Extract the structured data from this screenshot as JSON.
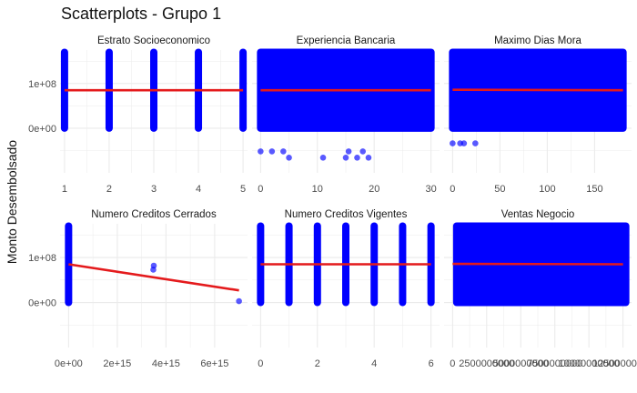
{
  "title": "Scatterplots - Grupo 1",
  "ylabel": "Monto Desembolsado",
  "colors": {
    "points": "#0000ff",
    "trend": "#e41a1c",
    "grid": "#ebebeb",
    "background": "#ffffff"
  },
  "y_axis": {
    "lim": [
      -100000000,
      175000000
    ],
    "ticks": [
      0,
      100000000
    ],
    "tick_labels": [
      "0e+00",
      "1e+08"
    ]
  },
  "chart_data": [
    {
      "type": "scatter",
      "title": "Estrato Socioeconomico",
      "xlim": [
        0.9,
        5.1
      ],
      "x_ticks": [
        1,
        2,
        3,
        4,
        5
      ],
      "x_tick_labels": [
        "1",
        "2",
        "3",
        "4",
        "5"
      ],
      "dense": {
        "mode": "columns",
        "x": [
          1,
          2,
          3,
          4,
          5
        ],
        "y_range": [
          0,
          170000000
        ]
      },
      "points": [],
      "trend": {
        "x": [
          1,
          5
        ],
        "y": [
          85000000,
          85000000
        ]
      }
    },
    {
      "type": "scatter",
      "title": "Experiencia Bancaria",
      "xlim": [
        -1.5,
        31.5
      ],
      "x_ticks": [
        0,
        10,
        20,
        30
      ],
      "x_tick_labels": [
        "0",
        "10",
        "20",
        "30"
      ],
      "dense": {
        "mode": "block",
        "x_range": [
          0,
          30
        ],
        "y_range": [
          0,
          170000000
        ]
      },
      "points": [
        {
          "x": 0,
          "y": -52000000
        },
        {
          "x": 2,
          "y": -52000000
        },
        {
          "x": 4,
          "y": -52000000
        },
        {
          "x": 5,
          "y": -66000000
        },
        {
          "x": 11,
          "y": -66000000
        },
        {
          "x": 15,
          "y": -66000000
        },
        {
          "x": 15.5,
          "y": -52000000
        },
        {
          "x": 17,
          "y": -66000000
        },
        {
          "x": 18,
          "y": -52000000
        },
        {
          "x": 19,
          "y": -66000000
        }
      ],
      "trend": {
        "x": [
          0,
          30
        ],
        "y": [
          85000000,
          85000000
        ]
      }
    },
    {
      "type": "scatter",
      "title": "Maximo Dias Mora",
      "xlim": [
        -9,
        189
      ],
      "x_ticks": [
        0,
        50,
        100,
        150
      ],
      "x_tick_labels": [
        "0",
        "50",
        "100",
        "150"
      ],
      "dense": {
        "mode": "block",
        "x_range": [
          0,
          180
        ],
        "y_range": [
          0,
          170000000
        ]
      },
      "points": [
        {
          "x": 0,
          "y": -34000000
        },
        {
          "x": 8,
          "y": -34000000
        },
        {
          "x": 12,
          "y": -34000000
        },
        {
          "x": 24,
          "y": -34000000
        }
      ],
      "trend": {
        "x": [
          0,
          180
        ],
        "y": [
          86000000,
          85000000
        ]
      }
    },
    {
      "type": "scatter",
      "title": "Numero Creditos Cerrados",
      "xlim": [
        -350000000000000,
        7350000000000000
      ],
      "x_ticks": [
        0,
        2000000000000000,
        4000000000000000,
        6000000000000000
      ],
      "x_tick_labels": [
        "0e+00",
        "2e+15",
        "4e+15",
        "6e+15"
      ],
      "dense": {
        "mode": "columns",
        "x": [
          0
        ],
        "y_range": [
          0,
          170000000
        ]
      },
      "points": [
        {
          "x": 3500000000000000,
          "y": 82000000
        },
        {
          "x": 3480000000000000,
          "y": 73000000
        },
        {
          "x": 7000000000000000,
          "y": 3000000
        }
      ],
      "trend": {
        "x": [
          0,
          7000000000000000
        ],
        "y": [
          85000000,
          27000000
        ]
      }
    },
    {
      "type": "scatter",
      "title": "Numero Creditos Vigentes",
      "xlim": [
        -0.3,
        6.3
      ],
      "x_ticks": [
        0,
        2,
        4,
        6
      ],
      "x_tick_labels": [
        "0",
        "2",
        "4",
        "6"
      ],
      "dense": {
        "mode": "columns",
        "x": [
          0,
          1,
          2,
          3,
          4,
          5,
          6
        ],
        "y_range": [
          0,
          170000000
        ]
      },
      "points": [],
      "trend": {
        "x": [
          0,
          6
        ],
        "y": [
          85000000,
          85000000
        ]
      }
    },
    {
      "type": "scatter",
      "title": "Ventas Negocio",
      "xlim": [
        -625000000,
        13125000000
      ],
      "x_ticks": [
        0,
        2500000000,
        5000000000,
        7500000000,
        10000000000,
        12500000000
      ],
      "x_tick_labels": [
        "0",
        "2500000000",
        "5000000000",
        "7500000000",
        "10000000000",
        "12500000000"
      ],
      "dense": {
        "mode": "block",
        "x_range": [
          300000000,
          12700000000
        ],
        "y_range": [
          0,
          170000000
        ]
      },
      "points": [],
      "trend": {
        "x": [
          0,
          12500000000
        ],
        "y": [
          86000000,
          85000000
        ]
      }
    }
  ]
}
